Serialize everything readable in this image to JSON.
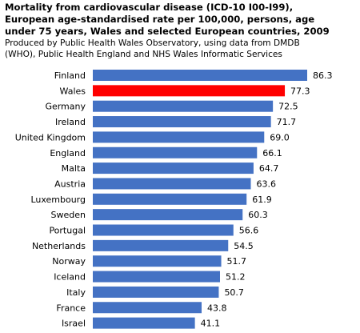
{
  "title": "Mortality from cardiovascular disease (ICD-10 I00-I99),\nEuropean age-standardised rate per 100,000, persons, age\nunder 75 years, Wales and selected European countries, 2009",
  "subtitle": "Produced by Public Health Wales Observatory, using data from DMDB\n(WHO), Public Health England and NHS Wales Informatic Services",
  "colors": {
    "bar": "#4472c4",
    "highlight": "#ff0000"
  },
  "chart_data": {
    "type": "bar",
    "orientation": "horizontal",
    "categories": [
      "Finland",
      "Wales",
      "Germany",
      "Ireland",
      "United Kingdom",
      "England",
      "Malta",
      "Austria",
      "Luxembourg",
      "Sweden",
      "Portugal",
      "Netherlands",
      "Norway",
      "Iceland",
      "Italy",
      "France",
      "Israel"
    ],
    "values": [
      86.3,
      77.3,
      72.5,
      71.7,
      69.0,
      66.1,
      64.7,
      63.6,
      61.9,
      60.3,
      56.6,
      54.5,
      51.7,
      51.2,
      50.7,
      43.8,
      41.1
    ],
    "value_labels": [
      "86.3",
      "77.3",
      "72.5",
      "71.7",
      "69.0",
      "66.1",
      "64.7",
      "63.6",
      "61.9",
      "60.3",
      "56.6",
      "54.5",
      "51.7",
      "51.2",
      "50.7",
      "43.8",
      "41.1"
    ],
    "highlight_category": "Wales",
    "xlim": [
      0,
      86.3
    ],
    "grid": false,
    "legend": "none"
  }
}
